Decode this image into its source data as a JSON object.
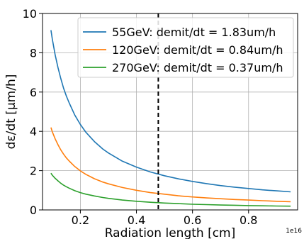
{
  "chart_data": {
    "type": "line",
    "xlabel": "Radiation length [cm]",
    "ylabel": "dε/dt [μm/h]",
    "x_scale_label": "1e16",
    "xlim": [
      0.065,
      0.975
    ],
    "ylim": [
      0,
      10
    ],
    "xticks": [
      0.2,
      0.4,
      0.6,
      0.8
    ],
    "xtick_labels": [
      "0.2",
      "0.4",
      "0.6",
      "0.8"
    ],
    "yticks": [
      0,
      2,
      4,
      6,
      8,
      10
    ],
    "ytick_labels": [
      "0",
      "2",
      "4",
      "6",
      "8",
      "10"
    ],
    "grid": true,
    "legend_position": "top-right",
    "x": [
      0.095,
      0.1,
      0.11,
      0.12,
      0.13,
      0.14,
      0.15,
      0.16,
      0.18,
      0.2,
      0.22,
      0.25,
      0.28,
      0.3,
      0.35,
      0.4,
      0.45,
      0.5,
      0.55,
      0.6,
      0.65,
      0.7,
      0.75,
      0.8,
      0.85,
      0.9,
      0.95
    ],
    "series": [
      {
        "name": "55GeV: demit/dt = 1.83um/h",
        "color": "#1f77b4",
        "values": [
          9.15,
          8.7,
          7.9,
          7.25,
          6.7,
          6.2,
          5.8,
          5.45,
          4.83,
          4.35,
          3.95,
          3.48,
          3.1,
          2.9,
          2.48,
          2.18,
          1.93,
          1.74,
          1.58,
          1.45,
          1.34,
          1.24,
          1.16,
          1.09,
          1.02,
          0.97,
          0.92
        ]
      },
      {
        "name": "120GeV: demit/dt = 0.84um/h",
        "color": "#ff7f0e",
        "values": [
          4.2,
          3.98,
          3.62,
          3.32,
          3.06,
          2.84,
          2.65,
          2.49,
          2.21,
          1.99,
          1.81,
          1.59,
          1.42,
          1.33,
          1.14,
          1.0,
          0.88,
          0.8,
          0.72,
          0.66,
          0.61,
          0.57,
          0.53,
          0.5,
          0.47,
          0.44,
          0.42
        ]
      },
      {
        "name": "270GeV: demit/dt = 0.37um/h",
        "color": "#2ca02c",
        "values": [
          1.87,
          1.77,
          1.61,
          1.48,
          1.36,
          1.26,
          1.18,
          1.11,
          0.98,
          0.88,
          0.8,
          0.71,
          0.63,
          0.59,
          0.5,
          0.44,
          0.39,
          0.35,
          0.32,
          0.29,
          0.27,
          0.25,
          0.24,
          0.22,
          0.21,
          0.2,
          0.19
        ]
      }
    ],
    "vline": {
      "x": 0.478,
      "style": "dashed",
      "color": "#000000"
    }
  }
}
